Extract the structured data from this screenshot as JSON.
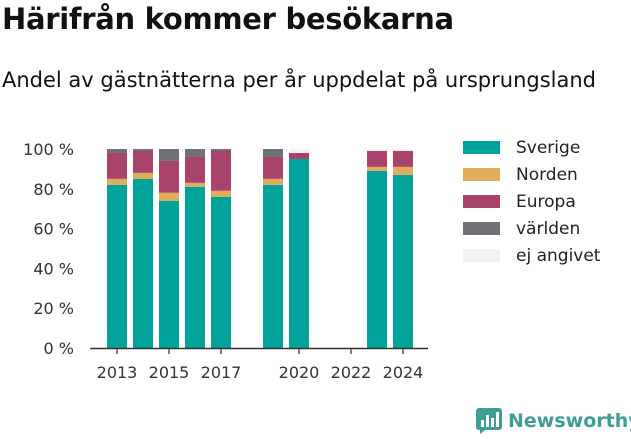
{
  "chart_data": {
    "type": "bar",
    "stacked": true,
    "title": "Härifrån kommer besökarna",
    "subtitle": "Andel av gästnätterna per år uppdelat på ursprungsland",
    "categories": [
      2013,
      2014,
      2015,
      2016,
      2017,
      2018,
      2019,
      2020,
      2021,
      2022,
      2023,
      2024
    ],
    "x_ticks": [
      "2013",
      "2015",
      "2017",
      "2020",
      "2022",
      "2024"
    ],
    "y_ticks": [
      "0 %",
      "20 %",
      "40 %",
      "60 %",
      "80 %",
      "100 %"
    ],
    "ylim": [
      0,
      100
    ],
    "legend_position": "right",
    "series": [
      {
        "name": "Sverige",
        "color": "#00a39a",
        "values": [
          82,
          85,
          74,
          81,
          76,
          null,
          82,
          95,
          null,
          null,
          89,
          87
        ]
      },
      {
        "name": "Norden",
        "color": "#e0ad5b",
        "values": [
          3,
          3,
          4,
          2,
          3,
          null,
          3,
          0,
          null,
          null,
          2,
          4
        ]
      },
      {
        "name": "Europa",
        "color": "#a8436c",
        "values": [
          13,
          11,
          16,
          13,
          20,
          null,
          11,
          3,
          null,
          null,
          8,
          8
        ]
      },
      {
        "name": "världen",
        "color": "#707176",
        "values": [
          2,
          1,
          6,
          4,
          1,
          null,
          4,
          0,
          null,
          null,
          0,
          0
        ]
      },
      {
        "name": "ej angivet",
        "color": "#f2f2f2",
        "values": [
          0,
          0,
          0,
          0,
          0,
          null,
          0,
          2,
          null,
          null,
          1,
          1
        ]
      }
    ]
  },
  "brand": {
    "name": "Newsworthy",
    "icon": "newsworthy-logo-icon",
    "color": "#3f9e93"
  }
}
